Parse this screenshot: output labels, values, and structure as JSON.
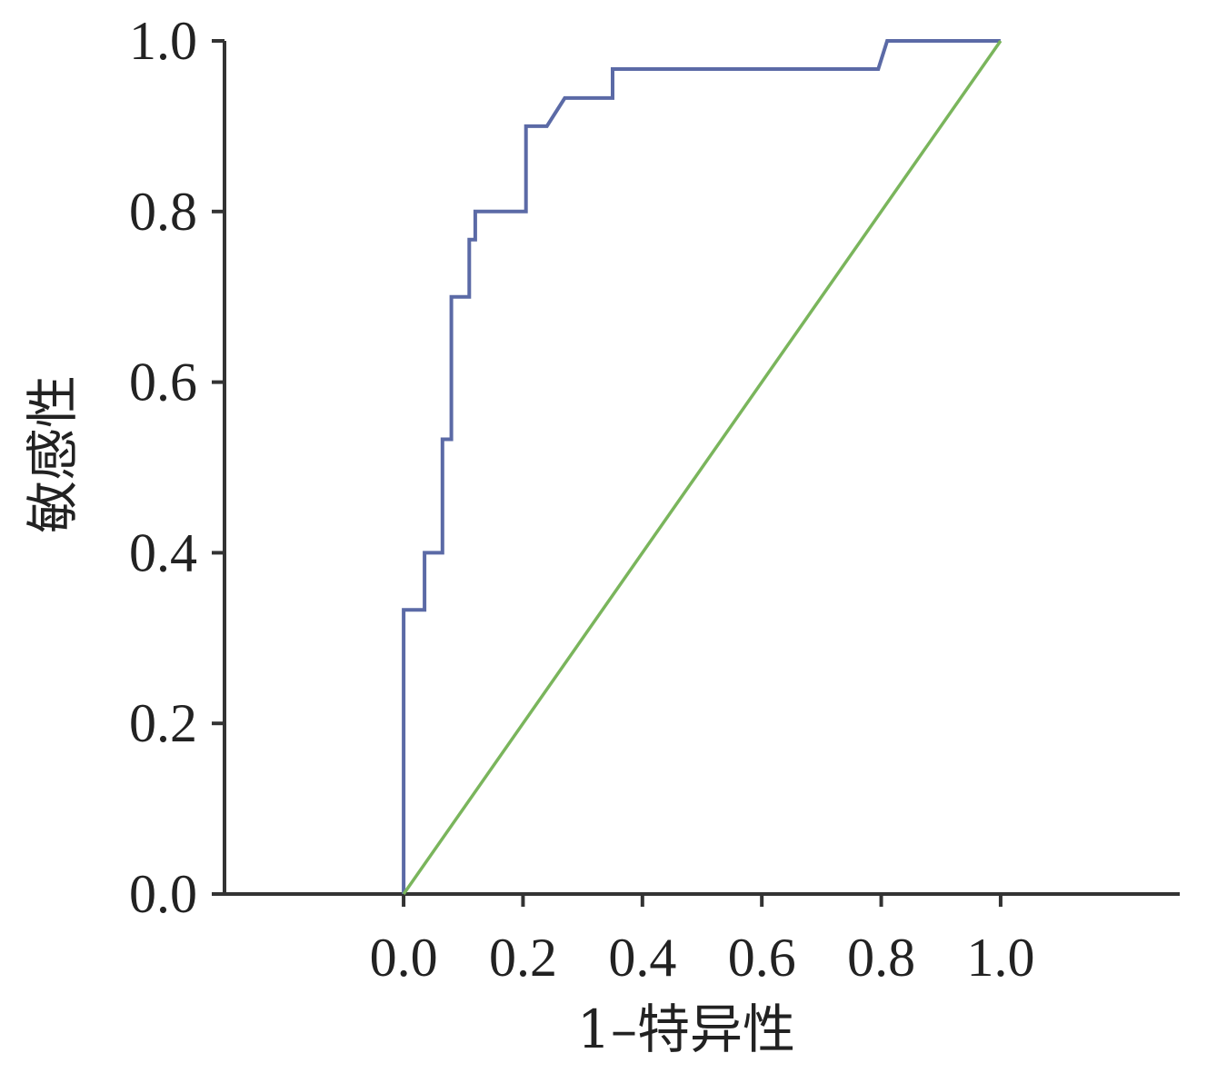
{
  "chart_data": {
    "type": "line",
    "title": "",
    "xlabel": "1–特异性",
    "ylabel": "敏感性",
    "xlim": [
      -0.3,
      1.3
    ],
    "ylim": [
      0,
      1
    ],
    "xticks": [
      "0.0",
      "0.2",
      "0.4",
      "0.6",
      "0.8",
      "1.0"
    ],
    "yticks": [
      "0.0",
      "0.2",
      "0.4",
      "0.6",
      "0.8",
      "1.0"
    ],
    "xtick_values": [
      0,
      0.2,
      0.4,
      0.6,
      0.8,
      1.0
    ],
    "ytick_values": [
      0,
      0.2,
      0.4,
      0.6,
      0.8,
      1.0
    ],
    "grid": false,
    "series": [
      {
        "color": "#5b6aa6",
        "style": "step",
        "x": [
          0.0,
          0.0,
          0.035,
          0.035,
          0.065,
          0.065,
          0.065,
          0.065,
          0.08,
          0.08,
          0.11,
          0.11,
          0.12,
          0.12,
          0.205,
          0.205,
          0.24,
          0.27,
          0.35,
          0.35,
          0.795,
          0.81,
          1.0
        ],
        "y": [
          0.0,
          0.333,
          0.333,
          0.4,
          0.4,
          0.5,
          0.5,
          0.533,
          0.533,
          0.7,
          0.7,
          0.767,
          0.767,
          0.8,
          0.8,
          0.9,
          0.9,
          0.933,
          0.933,
          0.967,
          0.967,
          1.0,
          1.0
        ]
      },
      {
        "color": "#7ab55c",
        "style": "reference",
        "x": [
          0.0,
          1.0
        ],
        "y": [
          0.0,
          1.0
        ]
      }
    ]
  }
}
